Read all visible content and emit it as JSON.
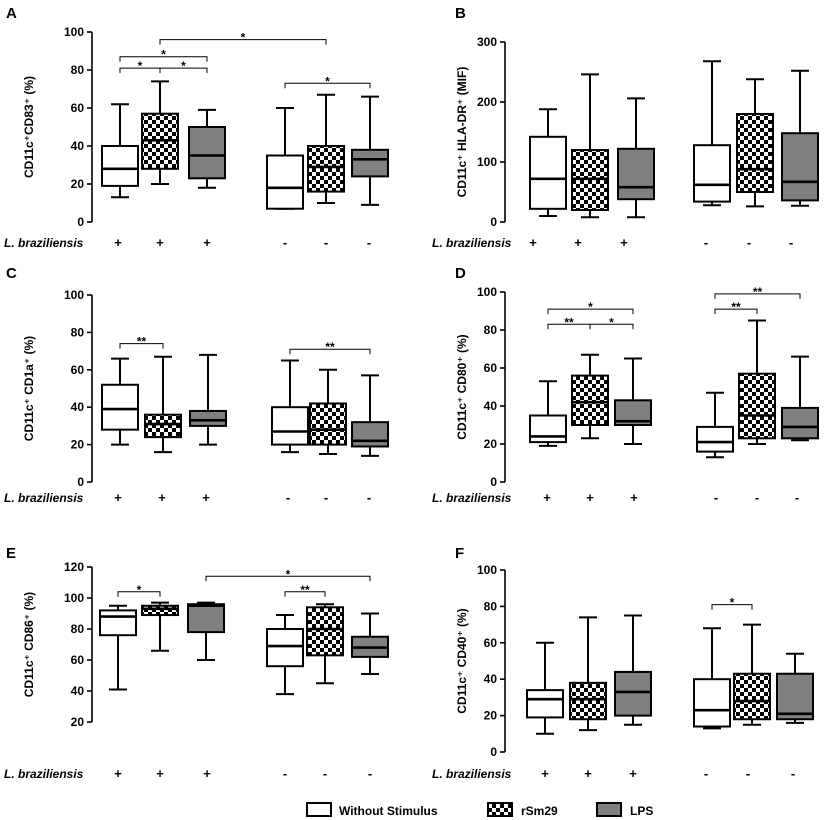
{
  "legend": [
    {
      "label": "Without Stimulus",
      "fill": "#ffffff",
      "checkered": false
    },
    {
      "label": "rSm29",
      "fill": "#000000",
      "checkered": true
    },
    {
      "label": "LPS",
      "fill": "#808080",
      "checkered": false
    }
  ],
  "chart_data": [
    {
      "panel": "A",
      "type": "box",
      "ylabel": "CD11c⁺CD83⁺ (%)",
      "ylim": [
        0,
        100
      ],
      "yticks": [
        0,
        20,
        40,
        60,
        80,
        100
      ],
      "xlabel": "L. braziliensis",
      "categories": [
        "+",
        "+",
        "+",
        "-",
        "-",
        "-"
      ],
      "boxes": [
        {
          "series": 0,
          "min": 13,
          "q1": 19,
          "median": 28,
          "q3": 40,
          "max": 62
        },
        {
          "series": 1,
          "min": 20,
          "q1": 28,
          "median": 43,
          "q3": 57,
          "max": 74
        },
        {
          "series": 2,
          "min": 18,
          "q1": 23,
          "median": 35,
          "q3": 50,
          "max": 59
        },
        {
          "series": 0,
          "min": 7,
          "q1": 7,
          "median": 18,
          "q3": 35,
          "max": 60
        },
        {
          "series": 1,
          "min": 10,
          "q1": 16,
          "median": 29,
          "q3": 40,
          "max": 67
        },
        {
          "series": 2,
          "min": 9,
          "q1": 24,
          "median": 33,
          "q3": 38,
          "max": 66
        }
      ],
      "significance": [
        {
          "pair": [
            0,
            1
          ],
          "label": "*",
          "y": 81
        },
        {
          "pair": [
            1,
            2
          ],
          "label": "*",
          "y": 81
        },
        {
          "pair": [
            0,
            2
          ],
          "label": "*",
          "y": 87
        },
        {
          "pair": [
            1,
            4
          ],
          "label": "*",
          "y": 96
        },
        {
          "pair": [
            3,
            5
          ],
          "label": "*",
          "y": 73
        }
      ]
    },
    {
      "panel": "B",
      "type": "box",
      "ylabel": "CD11c⁺ HLA-DR⁺ (MIF)",
      "ylim": [
        0,
        300
      ],
      "yticks": [
        0,
        100,
        200,
        300
      ],
      "xlabel": "L. braziliensis",
      "categories": [
        "+",
        "+",
        "+",
        "-",
        "-",
        "-"
      ],
      "boxes": [
        {
          "series": 0,
          "min": 10,
          "q1": 22,
          "median": 72,
          "q3": 142,
          "max": 188
        },
        {
          "series": 1,
          "min": 8,
          "q1": 20,
          "median": 72,
          "q3": 120,
          "max": 246
        },
        {
          "series": 2,
          "min": 8,
          "q1": 38,
          "median": 58,
          "q3": 122,
          "max": 206
        },
        {
          "series": 0,
          "min": 28,
          "q1": 34,
          "median": 62,
          "q3": 128,
          "max": 268
        },
        {
          "series": 1,
          "min": 26,
          "q1": 50,
          "median": 88,
          "q3": 180,
          "max": 238
        },
        {
          "series": 2,
          "min": 27,
          "q1": 36,
          "median": 67,
          "q3": 148,
          "max": 252
        }
      ],
      "significance": []
    },
    {
      "panel": "C",
      "type": "box",
      "ylabel": "CD11c⁺ CD1a⁺ (%)",
      "ylim": [
        0,
        100
      ],
      "yticks": [
        0,
        20,
        40,
        60,
        80,
        100
      ],
      "xlabel": "L. braziliensis",
      "categories": [
        "+",
        "+",
        "+",
        "-",
        "-",
        "-"
      ],
      "boxes": [
        {
          "series": 0,
          "min": 20,
          "q1": 28,
          "median": 39,
          "q3": 52,
          "max": 66
        },
        {
          "series": 1,
          "min": 16,
          "q1": 24,
          "median": 31,
          "q3": 36,
          "max": 67
        },
        {
          "series": 2,
          "min": 20,
          "q1": 30,
          "median": 33,
          "q3": 38,
          "max": 68
        },
        {
          "series": 0,
          "min": 16,
          "q1": 20,
          "median": 27,
          "q3": 40,
          "max": 65
        },
        {
          "series": 1,
          "min": 15,
          "q1": 20,
          "median": 28,
          "q3": 42,
          "max": 60
        },
        {
          "series": 2,
          "min": 14,
          "q1": 19,
          "median": 22,
          "q3": 32,
          "max": 57
        }
      ],
      "significance": [
        {
          "pair": [
            0,
            1
          ],
          "label": "**",
          "y": 74
        },
        {
          "pair": [
            3,
            5
          ],
          "label": "**",
          "y": 71
        }
      ]
    },
    {
      "panel": "D",
      "type": "box",
      "ylabel": "CD11c⁺ CD80⁺ (%)",
      "ylim": [
        0,
        100
      ],
      "yticks": [
        0,
        20,
        40,
        60,
        80,
        100
      ],
      "xlabel": "L. braziliensis",
      "categories": [
        "+",
        "+",
        "+",
        "-",
        "-",
        "-"
      ],
      "boxes": [
        {
          "series": 0,
          "min": 19,
          "q1": 21,
          "median": 24,
          "q3": 35,
          "max": 53
        },
        {
          "series": 1,
          "min": 23,
          "q1": 30,
          "median": 42,
          "q3": 56,
          "max": 67
        },
        {
          "series": 2,
          "min": 20,
          "q1": 30,
          "median": 32,
          "q3": 43,
          "max": 65
        },
        {
          "series": 0,
          "min": 13,
          "q1": 16,
          "median": 21,
          "q3": 29,
          "max": 47
        },
        {
          "series": 1,
          "min": 20,
          "q1": 23,
          "median": 35,
          "q3": 57,
          "max": 85
        },
        {
          "series": 2,
          "min": 22,
          "q1": 23,
          "median": 29,
          "q3": 39,
          "max": 66
        }
      ],
      "significance": [
        {
          "pair": [
            0,
            1
          ],
          "label": "**",
          "y": 83
        },
        {
          "pair": [
            1,
            2
          ],
          "label": "*",
          "y": 83
        },
        {
          "pair": [
            0,
            2
          ],
          "label": "*",
          "y": 91
        },
        {
          "pair": [
            3,
            4
          ],
          "label": "**",
          "y": 91
        },
        {
          "pair": [
            3,
            5
          ],
          "label": "**",
          "y": 99
        }
      ]
    },
    {
      "panel": "E",
      "type": "box",
      "ylabel": "CD11c⁺ CD86⁺ (%)",
      "ylim": [
        20,
        120
      ],
      "yticks": [
        20,
        40,
        60,
        80,
        100,
        120
      ],
      "xlabel": "L. braziliensis",
      "categories": [
        "+",
        "+",
        "+",
        "-",
        "-",
        "-"
      ],
      "boxes": [
        {
          "series": 0,
          "min": 41,
          "q1": 76,
          "median": 88,
          "q3": 92,
          "max": 95
        },
        {
          "series": 1,
          "min": 66,
          "q1": 89,
          "median": 93,
          "q3": 95,
          "max": 97
        },
        {
          "series": 2,
          "min": 60,
          "q1": 78,
          "median": 95,
          "q3": 96,
          "max": 97
        },
        {
          "series": 0,
          "min": 38,
          "q1": 56,
          "median": 69,
          "q3": 80,
          "max": 89
        },
        {
          "series": 1,
          "min": 45,
          "q1": 63,
          "median": 80,
          "q3": 94,
          "max": 96
        },
        {
          "series": 2,
          "min": 51,
          "q1": 62,
          "median": 68,
          "q3": 75,
          "max": 90
        }
      ],
      "significance": [
        {
          "pair": [
            0,
            1
          ],
          "label": "*",
          "y": 104
        },
        {
          "pair": [
            2,
            5
          ],
          "label": "*",
          "y": 114
        },
        {
          "pair": [
            3,
            4
          ],
          "label": "**",
          "y": 104
        }
      ]
    },
    {
      "panel": "F",
      "type": "box",
      "ylabel": "CD11c⁺ CD40⁺ (%)",
      "ylim": [
        0,
        100
      ],
      "yticks": [
        0,
        20,
        40,
        60,
        80,
        100
      ],
      "xlabel": "L. braziliensis",
      "categories": [
        "+",
        "+",
        "+",
        "-",
        "-",
        "-"
      ],
      "boxes": [
        {
          "series": 0,
          "min": 10,
          "q1": 19,
          "median": 29,
          "q3": 34,
          "max": 60
        },
        {
          "series": 1,
          "min": 12,
          "q1": 18,
          "median": 29,
          "q3": 38,
          "max": 74
        },
        {
          "series": 2,
          "min": 15,
          "q1": 20,
          "median": 33,
          "q3": 44,
          "max": 75
        },
        {
          "series": 0,
          "min": 13,
          "q1": 14,
          "median": 23,
          "q3": 40,
          "max": 68
        },
        {
          "series": 1,
          "min": 15,
          "q1": 18,
          "median": 28,
          "q3": 43,
          "max": 70
        },
        {
          "series": 2,
          "min": 16,
          "q1": 18,
          "median": 21,
          "q3": 43,
          "max": 54
        }
      ],
      "significance": [
        {
          "pair": [
            3,
            4
          ],
          "label": "*",
          "y": 81
        }
      ]
    }
  ]
}
